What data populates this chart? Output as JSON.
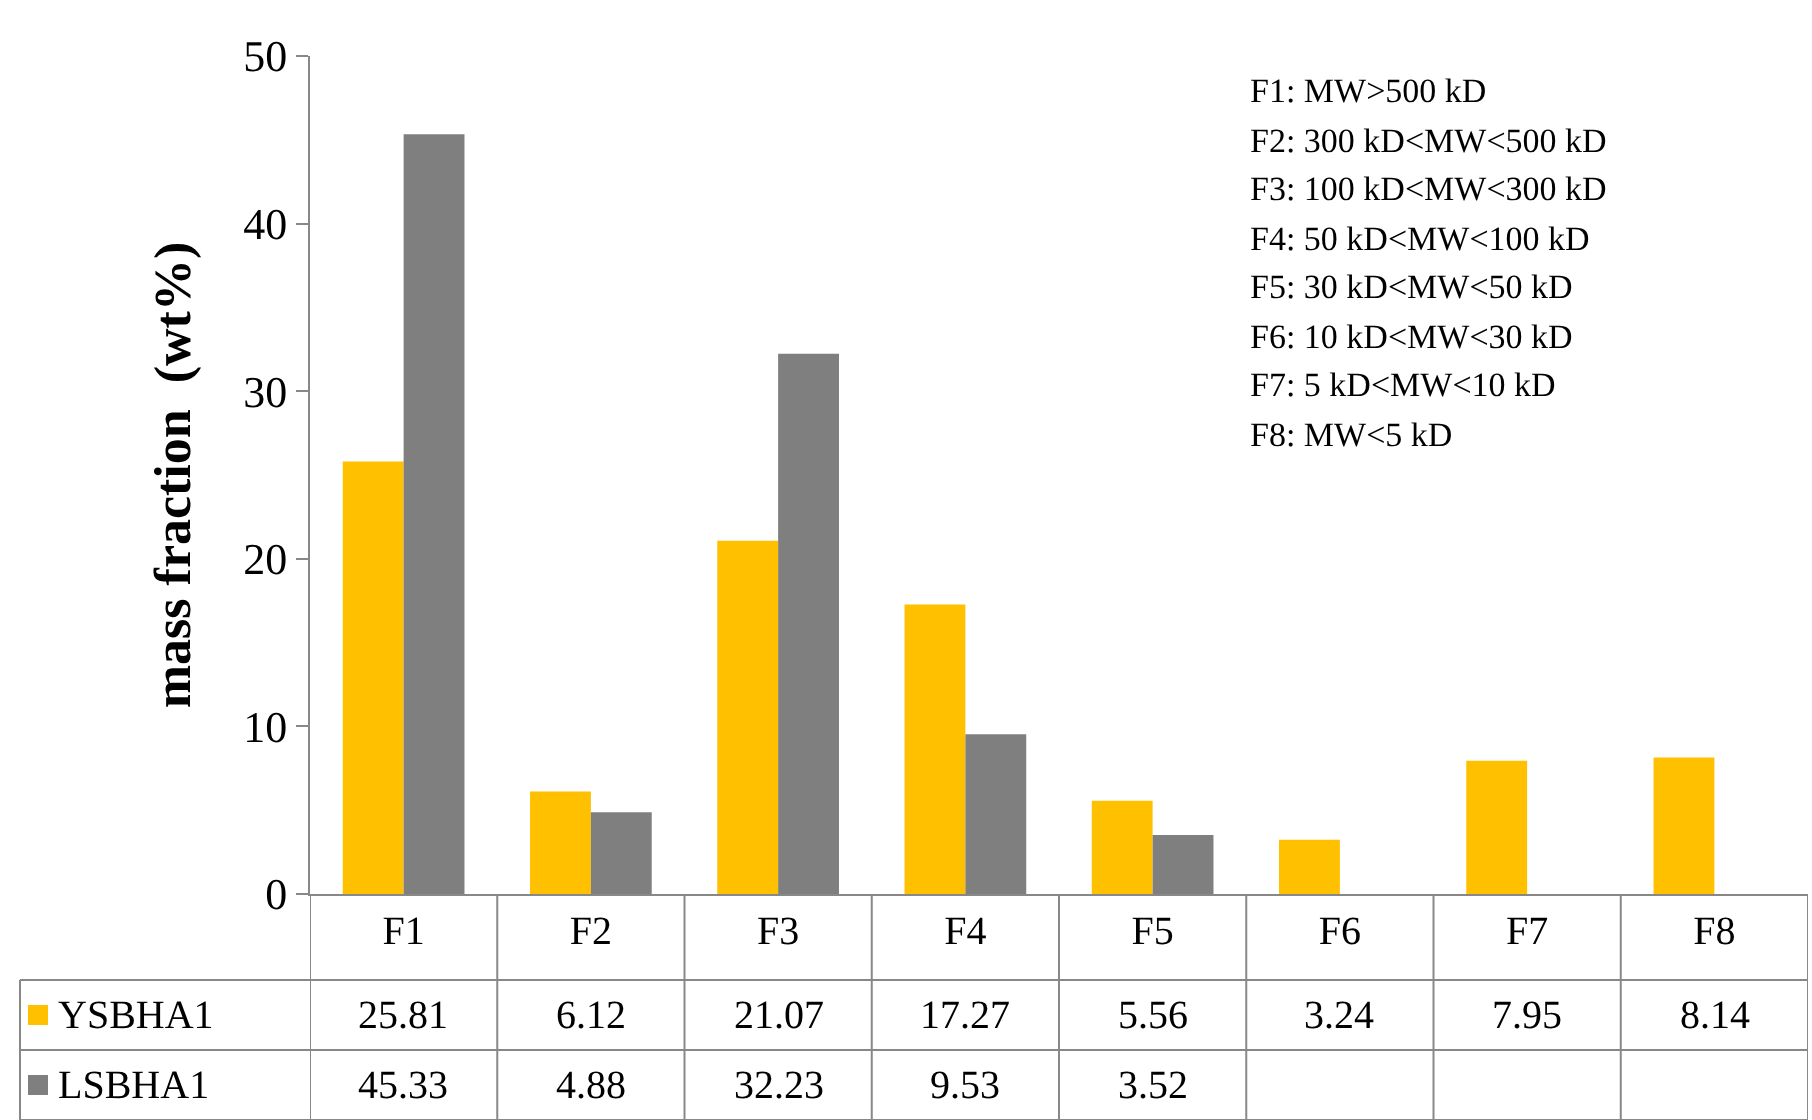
{
  "chart_data": {
    "type": "bar",
    "ylabel": "mass fraction  (wt%)",
    "categories": [
      "F1",
      "F2",
      "F3",
      "F4",
      "F5",
      "F6",
      "F7",
      "F8"
    ],
    "series": [
      {
        "name": "YSBHA1",
        "color": "#ffc000",
        "values": [
          25.81,
          6.12,
          21.07,
          17.27,
          5.56,
          3.24,
          7.95,
          8.14
        ]
      },
      {
        "name": "LSBHA1",
        "color": "#7f7f7f",
        "values": [
          45.33,
          4.88,
          32.23,
          9.53,
          3.52,
          null,
          null,
          null
        ]
      }
    ],
    "ylim": [
      0,
      50
    ],
    "yticks": [
      0,
      10,
      20,
      30,
      40,
      50
    ],
    "legend": "bottom left",
    "data_labels": true,
    "annotations": [
      "F1: MW>500 kD",
      "F2: 300 kD<MW<500 kD",
      "F3: 100 kD<MW<300 kD",
      "F4: 50 kD<MW<100 kD",
      "F5: 30 kD<MW<50 kD",
      "F6: 10 kD<MW<30 kD",
      "F7: 5 kD<MW<10 kD",
      "F8: MW<5 kD"
    ]
  }
}
